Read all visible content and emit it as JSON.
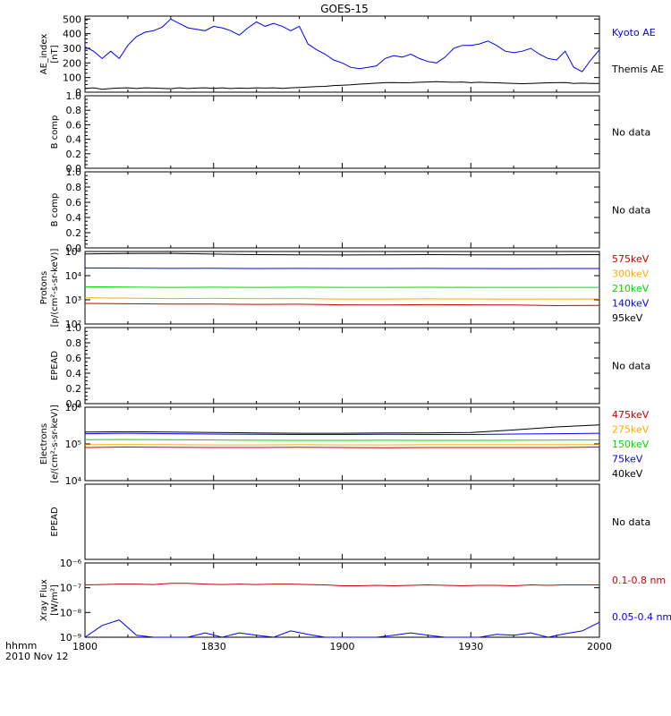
{
  "title": "GOES-15",
  "time_axis": {
    "hhmm_label": "hhmm",
    "date_label": "2010 Nov 12",
    "tick_labels": [
      "1800",
      "1830",
      "1900",
      "1930",
      "2000"
    ]
  },
  "colors": {
    "black": "#000000",
    "blue": "#0000ff",
    "red": "#cc0000",
    "orange": "#ffaa00",
    "green": "#00dd00"
  },
  "chart_data": [
    {
      "type": "line",
      "panel": "ae-index",
      "ylabel": [
        "AE_index",
        "[nT]"
      ],
      "ylim": [
        0,
        520
      ],
      "yscale": "linear",
      "ytick_values": [
        0,
        100,
        200,
        300,
        400,
        500
      ],
      "ytick_labels": [
        "0",
        "100",
        "200",
        "300",
        "400",
        "500"
      ],
      "x_minutes": [
        0,
        2,
        4,
        6,
        8,
        10,
        12,
        14,
        16,
        18,
        20,
        22,
        24,
        26,
        28,
        30,
        32,
        34,
        36,
        38,
        40,
        42,
        44,
        46,
        48,
        50,
        52,
        54,
        56,
        58,
        60,
        62,
        64,
        66,
        68,
        70,
        72,
        74,
        76,
        78,
        80,
        82,
        84,
        86,
        88,
        90,
        92,
        94,
        96,
        98,
        100,
        102,
        104,
        106,
        108,
        110,
        112,
        114,
        116,
        118,
        120
      ],
      "series": [
        {
          "name": "Kyoto AE",
          "color": "#0000ff",
          "values": [
            310,
            280,
            230,
            280,
            230,
            320,
            380,
            410,
            420,
            445,
            500,
            470,
            440,
            430,
            420,
            450,
            440,
            420,
            390,
            440,
            480,
            450,
            470,
            450,
            420,
            450,
            330,
            290,
            260,
            220,
            200,
            170,
            160,
            170,
            180,
            230,
            250,
            240,
            260,
            230,
            210,
            200,
            240,
            300,
            320,
            320,
            330,
            350,
            320,
            280,
            270,
            280,
            300,
            260,
            230,
            220,
            280,
            170,
            140,
            220,
            290
          ]
        },
        {
          "name": "Themis AE",
          "color": "#000000",
          "values": [
            25,
            30,
            20,
            25,
            28,
            30,
            25,
            30,
            28,
            26,
            24,
            30,
            25,
            28,
            30,
            26,
            30,
            25,
            28,
            26,
            30,
            28,
            30,
            26,
            30,
            32,
            35,
            38,
            40,
            45,
            48,
            50,
            55,
            58,
            62,
            65,
            66,
            64,
            65,
            68,
            70,
            72,
            70,
            68,
            70,
            65,
            68,
            66,
            64,
            62,
            60,
            58,
            60,
            62,
            64,
            65,
            66,
            60,
            62,
            60,
            60
          ]
        }
      ]
    },
    {
      "type": "line",
      "panel": "b-comp-1",
      "ylabel": [
        "B comp"
      ],
      "ylim": [
        0,
        1
      ],
      "ytick_labels": [
        "0.0",
        "0.2",
        "0.4",
        "0.6",
        "0.8",
        "1.0"
      ],
      "status": "No data",
      "series": []
    },
    {
      "type": "line",
      "panel": "b-comp-2",
      "ylabel": [
        "B comp"
      ],
      "ylim": [
        0,
        1
      ],
      "ytick_labels": [
        "0.0",
        "0.2",
        "0.4",
        "0.6",
        "0.8",
        "1.0"
      ],
      "status": "No data",
      "series": []
    },
    {
      "type": "line",
      "panel": "protons",
      "ylabel": [
        "Protons",
        "[p/(cm²-s-sr-keV)]"
      ],
      "yscale": "log",
      "ylim": [
        100,
        120000
      ],
      "ytick_labels": [
        "10²",
        "10³",
        "10⁴",
        "10⁵"
      ],
      "x_minutes": [
        0,
        10,
        20,
        30,
        40,
        50,
        60,
        70,
        80,
        90,
        100,
        110,
        120
      ],
      "series": [
        {
          "name": "575keV",
          "color": "#cc0000",
          "values": [
            750,
            720,
            700,
            700,
            680,
            690,
            650,
            640,
            660,
            650,
            640,
            600,
            620
          ]
        },
        {
          "name": "300keV",
          "color": "#ffaa00",
          "values": [
            1300,
            1250,
            1200,
            1220,
            1180,
            1200,
            1150,
            1150,
            1170,
            1160,
            1140,
            1150,
            1150
          ]
        },
        {
          "name": "210keV",
          "color": "#00dd00",
          "values": [
            3800,
            3700,
            3600,
            3650,
            3600,
            3650,
            3600,
            3600,
            3620,
            3600,
            3580,
            3600,
            3600
          ]
        },
        {
          "name": "140keV",
          "color": "#0000ff",
          "values": [
            24000,
            23500,
            23000,
            23200,
            22800,
            23000,
            22800,
            22700,
            23000,
            22800,
            22600,
            22800,
            22800
          ]
        },
        {
          "name": "95keV",
          "color": "#000000",
          "values": [
            95000,
            98000,
            100000,
            93000,
            88000,
            86000,
            85000,
            86000,
            88000,
            87000,
            86000,
            87000,
            88000
          ]
        }
      ]
    },
    {
      "type": "line",
      "panel": "epead-1",
      "ylabel": [
        "EPEAD"
      ],
      "ylim": [
        0,
        1
      ],
      "ytick_labels": [
        "0.0",
        "0.2",
        "0.4",
        "0.6",
        "0.8",
        "1.0"
      ],
      "status": "No data",
      "series": []
    },
    {
      "type": "line",
      "panel": "electrons",
      "ylabel": [
        "Electrons",
        "[e/(cm²-s-sr-keV)]"
      ],
      "yscale": "log",
      "ylim": [
        10000,
        1000000
      ],
      "ytick_labels": [
        "10⁴",
        "10⁵",
        "10⁶"
      ],
      "x_minutes": [
        0,
        10,
        20,
        30,
        40,
        50,
        60,
        70,
        80,
        90,
        100,
        110,
        120
      ],
      "series": [
        {
          "name": "475keV",
          "color": "#cc0000",
          "values": [
            80000,
            82000,
            81000,
            80000,
            80000,
            81000,
            80000,
            79000,
            80000,
            80000,
            80000,
            80000,
            82000
          ]
        },
        {
          "name": "275keV",
          "color": "#ffaa00",
          "values": [
            95000,
            96000,
            95000,
            94000,
            94000,
            95000,
            94000,
            94000,
            95000,
            95000,
            95000,
            95000,
            96000
          ]
        },
        {
          "name": "150keV",
          "color": "#00dd00",
          "values": [
            130000,
            132000,
            130000,
            128000,
            126000,
            125000,
            125000,
            126000,
            125000,
            125000,
            126000,
            127000,
            128000
          ]
        },
        {
          "name": "75keV",
          "color": "#0000ff",
          "values": [
            190000,
            195000,
            190000,
            185000,
            182000,
            180000,
            180000,
            182000,
            180000,
            180000,
            185000,
            190000,
            195000
          ]
        },
        {
          "name": "40keV",
          "color": "#000000",
          "values": [
            210000,
            215000,
            210000,
            205000,
            200000,
            195000,
            195000,
            198000,
            200000,
            205000,
            240000,
            290000,
            330000
          ]
        }
      ]
    },
    {
      "type": "line",
      "panel": "epead-2",
      "ylabel": [
        "EPEAD"
      ],
      "ylim": [
        0,
        1
      ],
      "ytick_labels": [],
      "status": "No data",
      "series": []
    },
    {
      "type": "line",
      "panel": "xray",
      "ylabel": [
        "Xray Flux",
        "[W/m²]"
      ],
      "yscale": "log",
      "ylim": [
        1e-09,
        1e-06
      ],
      "ytick_labels": [
        "10⁻⁹",
        "10⁻⁸",
        "10⁻⁷",
        "10⁻⁶"
      ],
      "x_minutes": [
        0,
        4,
        8,
        12,
        16,
        20,
        24,
        28,
        32,
        36,
        40,
        44,
        48,
        52,
        56,
        60,
        64,
        68,
        72,
        76,
        80,
        84,
        88,
        92,
        96,
        100,
        104,
        108,
        112,
        116,
        120
      ],
      "series": [
        {
          "name": "0.1-0.8 nm",
          "color": "#cc0000",
          "values": [
            1.3e-07,
            1.35e-07,
            1.4e-07,
            1.4e-07,
            1.35e-07,
            1.5e-07,
            1.5e-07,
            1.4e-07,
            1.35e-07,
            1.4e-07,
            1.35e-07,
            1.4e-07,
            1.4e-07,
            1.35e-07,
            1.3e-07,
            1.2e-07,
            1.2e-07,
            1.25e-07,
            1.2e-07,
            1.25e-07,
            1.3e-07,
            1.25e-07,
            1.2e-07,
            1.25e-07,
            1.25e-07,
            1.2e-07,
            1.3e-07,
            1.25e-07,
            1.3e-07,
            1.3e-07,
            1.3e-07
          ]
        },
        {
          "name": "0.05-0.4 nm",
          "color": "#0000ff",
          "values": [
            1e-09,
            3e-09,
            5e-09,
            1.2e-09,
            1e-09,
            1e-09,
            1e-09,
            1.5e-09,
            1e-09,
            1.5e-09,
            1.2e-09,
            1e-09,
            1.8e-09,
            1.3e-09,
            1e-09,
            1e-09,
            1e-09,
            1e-09,
            1.2e-09,
            1.5e-09,
            1.2e-09,
            1e-09,
            1e-09,
            1e-09,
            1.3e-09,
            1.2e-09,
            1.5e-09,
            1e-09,
            1.4e-09,
            1.8e-09,
            4e-09
          ]
        }
      ]
    }
  ]
}
